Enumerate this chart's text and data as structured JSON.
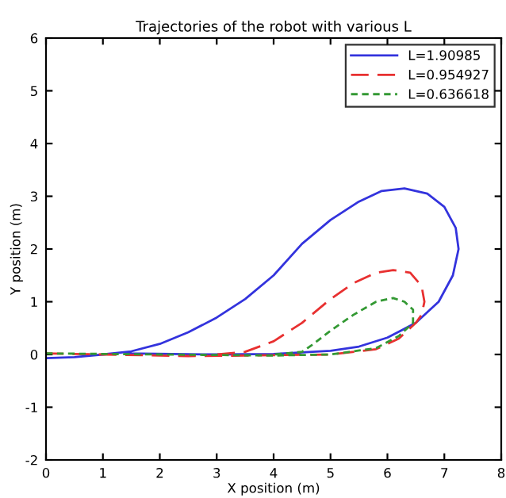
{
  "chart_data": {
    "type": "line",
    "title": "Trajectories of the robot with various L",
    "xlabel": "X position (m)",
    "ylabel": "Y position (m)",
    "xlim": [
      0,
      8
    ],
    "ylim": [
      -2,
      6
    ],
    "xticks": [
      0,
      1,
      2,
      3,
      4,
      5,
      6,
      7,
      8
    ],
    "yticks": [
      -2,
      -1,
      0,
      1,
      2,
      3,
      4,
      5,
      6
    ],
    "grid": false,
    "legend": "top right",
    "marker": "none",
    "series": [
      {
        "name": "L=1.90985",
        "color": "#3333dd",
        "line_style": "solid",
        "x": [
          1.4,
          3,
          4,
          5,
          5.5,
          6,
          6.5,
          6.9,
          7.15,
          7.25,
          7.2,
          7.0,
          6.7,
          6.3,
          5.9,
          5.5,
          5,
          4.5,
          4,
          3.5,
          3,
          2.5,
          2,
          1.5,
          1,
          0.5,
          0
        ],
        "values": [
          0.02,
          0.0,
          0.01,
          0.07,
          0.15,
          0.32,
          0.6,
          1.0,
          1.5,
          2.0,
          2.4,
          2.8,
          3.05,
          3.15,
          3.1,
          2.9,
          2.55,
          2.1,
          1.5,
          1.05,
          0.7,
          0.42,
          0.2,
          0.06,
          0.0,
          -0.05,
          -0.07
        ]
      },
      {
        "name": "L=0.954927",
        "color": "#e83030",
        "line_style": "dashed",
        "x": [
          0,
          1,
          2,
          2.5,
          3.5,
          5,
          5.8,
          6.2,
          6.5,
          6.6,
          6.65,
          6.6,
          6.4,
          6.1,
          5.8,
          5.4,
          5,
          4.5,
          4,
          3.5,
          3
        ],
        "values": [
          0.02,
          0.0,
          -0.02,
          -0.03,
          -0.02,
          0.0,
          0.1,
          0.3,
          0.6,
          0.75,
          1.0,
          1.3,
          1.55,
          1.6,
          1.55,
          1.35,
          1.05,
          0.6,
          0.25,
          0.05,
          0.0
        ]
      },
      {
        "name": "L=0.636618",
        "color": "#339933",
        "line_style": "dotted",
        "x": [
          0,
          2,
          4,
          5,
          5.8,
          6.2,
          6.45,
          6.45,
          6.3,
          6.1,
          5.8,
          5.4,
          5,
          4.7,
          4.5,
          4
        ],
        "values": [
          0.02,
          0.0,
          -0.02,
          0.0,
          0.12,
          0.35,
          0.6,
          0.85,
          1.0,
          1.07,
          1.0,
          0.75,
          0.45,
          0.2,
          0.05,
          0.0
        ]
      }
    ]
  }
}
